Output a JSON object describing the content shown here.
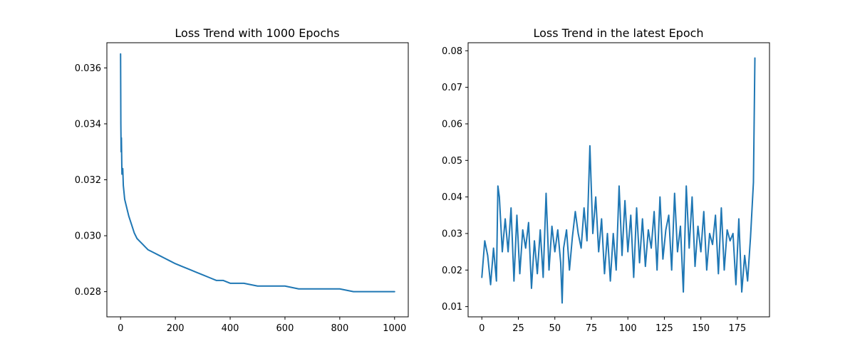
{
  "chart_data": [
    {
      "type": "line",
      "title": "Loss Trend with 1000 Epochs",
      "xlabel": "",
      "ylabel": "",
      "xlim": [
        -50,
        1050
      ],
      "ylim": [
        0.0271,
        0.0369
      ],
      "grid": false,
      "x_ticks": [
        0,
        200,
        400,
        600,
        800,
        1000
      ],
      "x_tick_labels": [
        "0",
        "200",
        "400",
        "600",
        "800",
        "1000"
      ],
      "y_ticks": [
        0.028,
        0.03,
        0.032,
        0.034,
        0.036
      ],
      "y_tick_labels": [
        "0.028",
        "0.030",
        "0.032",
        "0.034",
        "0.036"
      ],
      "color": "#1f77b4",
      "series": [
        {
          "x": [
            0,
            1,
            2,
            3,
            5,
            8,
            10,
            15,
            20,
            25,
            30,
            40,
            50,
            60,
            70,
            80,
            90,
            100,
            120,
            140,
            160,
            180,
            200,
            225,
            250,
            275,
            300,
            325,
            350,
            375,
            400,
            450,
            500,
            550,
            600,
            650,
            700,
            750,
            800,
            850,
            900,
            950,
            1000
          ],
          "values": [
            0.0365,
            0.034,
            0.033,
            0.0335,
            0.0322,
            0.0324,
            0.0318,
            0.0313,
            0.0311,
            0.0309,
            0.0307,
            0.0304,
            0.0301,
            0.0299,
            0.0298,
            0.0297,
            0.0296,
            0.0295,
            0.0294,
            0.0293,
            0.0292,
            0.0291,
            0.029,
            0.0289,
            0.0288,
            0.0287,
            0.0286,
            0.0285,
            0.0284,
            0.0284,
            0.0283,
            0.0283,
            0.0282,
            0.0282,
            0.0282,
            0.0281,
            0.0281,
            0.0281,
            0.0281,
            0.028,
            0.028,
            0.028,
            0.028
          ]
        }
      ]
    },
    {
      "type": "line",
      "title": "Loss Trend in the latest Epoch",
      "xlabel": "",
      "ylabel": "",
      "xlim": [
        -9.4,
        197
      ],
      "ylim": [
        0.0072,
        0.0822
      ],
      "grid": false,
      "x_ticks": [
        0,
        25,
        50,
        75,
        100,
        125,
        150,
        175
      ],
      "x_tick_labels": [
        "0",
        "25",
        "50",
        "75",
        "100",
        "125",
        "150",
        "175"
      ],
      "y_ticks": [
        0.01,
        0.02,
        0.03,
        0.04,
        0.05,
        0.06,
        0.07,
        0.08
      ],
      "y_tick_labels": [
        "0.01",
        "0.02",
        "0.03",
        "0.04",
        "0.05",
        "0.06",
        "0.07",
        "0.08"
      ],
      "color": "#1f77b4",
      "series": [
        {
          "x": [
            0,
            2,
            4,
            6,
            8,
            10,
            11,
            12,
            14,
            16,
            18,
            20,
            22,
            24,
            26,
            28,
            30,
            32,
            34,
            36,
            38,
            40,
            42,
            44,
            46,
            48,
            50,
            52,
            54,
            55,
            56,
            58,
            60,
            62,
            64,
            66,
            68,
            70,
            72,
            74,
            76,
            78,
            80,
            82,
            84,
            86,
            88,
            90,
            92,
            94,
            96,
            98,
            100,
            102,
            104,
            106,
            108,
            110,
            112,
            114,
            116,
            118,
            120,
            122,
            124,
            126,
            128,
            130,
            132,
            134,
            136,
            138,
            140,
            142,
            144,
            146,
            148,
            150,
            152,
            154,
            156,
            158,
            160,
            162,
            164,
            166,
            168,
            170,
            172,
            174,
            176,
            178,
            180,
            182,
            184,
            186,
            187
          ],
          "values": [
            0.018,
            0.028,
            0.024,
            0.016,
            0.026,
            0.017,
            0.043,
            0.04,
            0.025,
            0.034,
            0.025,
            0.037,
            0.017,
            0.035,
            0.019,
            0.031,
            0.026,
            0.033,
            0.015,
            0.028,
            0.019,
            0.031,
            0.018,
            0.041,
            0.02,
            0.032,
            0.025,
            0.031,
            0.022,
            0.011,
            0.026,
            0.031,
            0.02,
            0.029,
            0.036,
            0.03,
            0.026,
            0.037,
            0.028,
            0.054,
            0.03,
            0.04,
            0.025,
            0.034,
            0.019,
            0.03,
            0.017,
            0.03,
            0.02,
            0.043,
            0.024,
            0.039,
            0.025,
            0.035,
            0.018,
            0.037,
            0.022,
            0.034,
            0.021,
            0.031,
            0.026,
            0.036,
            0.02,
            0.04,
            0.023,
            0.031,
            0.035,
            0.02,
            0.041,
            0.025,
            0.032,
            0.014,
            0.043,
            0.026,
            0.04,
            0.021,
            0.032,
            0.025,
            0.036,
            0.02,
            0.03,
            0.027,
            0.035,
            0.019,
            0.037,
            0.02,
            0.031,
            0.028,
            0.03,
            0.016,
            0.034,
            0.014,
            0.024,
            0.017,
            0.029,
            0.044,
            0.078
          ]
        }
      ]
    }
  ]
}
